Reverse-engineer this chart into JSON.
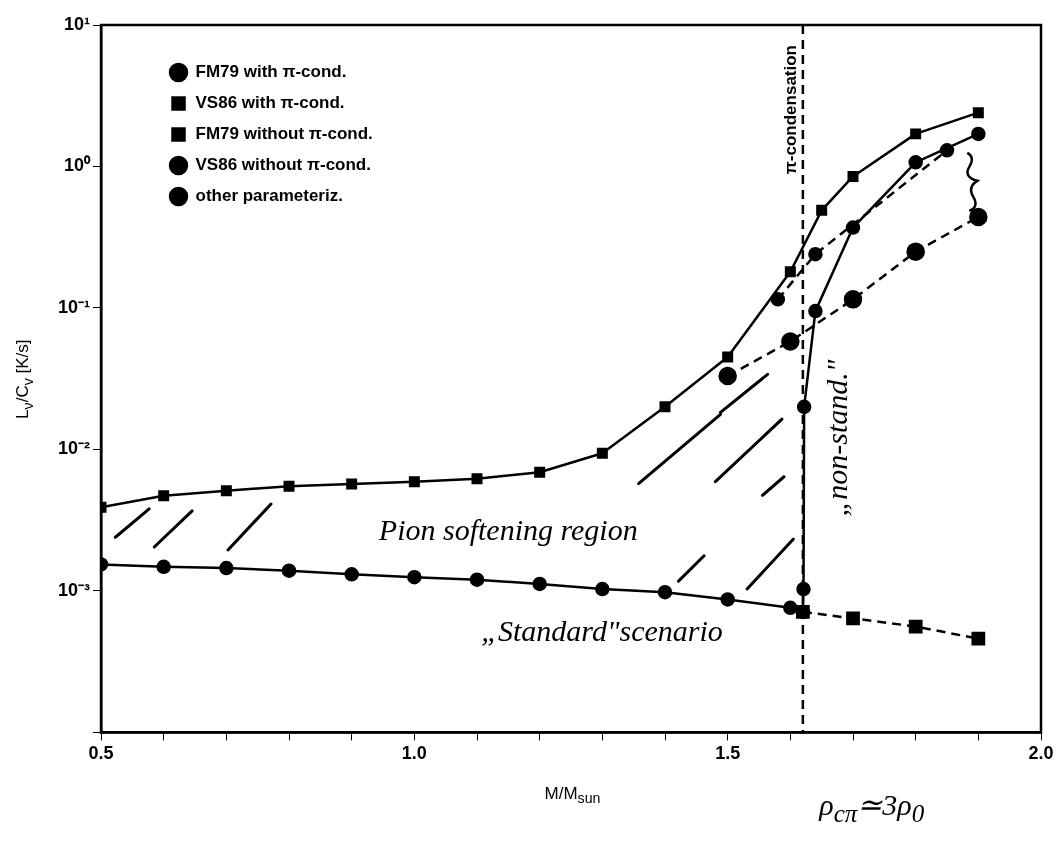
{
  "chart_data": {
    "type": "line",
    "xlabel": "M/M$_{sun}$",
    "ylabel": "L$_{ν}$/C$_{v}$ [K/s]",
    "log": "y",
    "grid": false,
    "legend": "top left",
    "xlim": [
      0.5,
      2.0
    ],
    "xticks": [
      {
        "value": 0.5,
        "label": "0.5"
      },
      {
        "value": 0.6,
        "label": null
      },
      {
        "value": 0.7,
        "label": null
      },
      {
        "value": 0.8,
        "label": null
      },
      {
        "value": 0.9,
        "label": null
      },
      {
        "value": 1.0,
        "label": "1.0"
      },
      {
        "value": 1.1,
        "label": null
      },
      {
        "value": 1.2,
        "label": null
      },
      {
        "value": 1.3,
        "label": null
      },
      {
        "value": 1.4,
        "label": null
      },
      {
        "value": 1.5,
        "label": "1.5"
      },
      {
        "value": 1.6,
        "label": null
      },
      {
        "value": 1.7,
        "label": null
      },
      {
        "value": 1.8,
        "label": null
      },
      {
        "value": 1.9,
        "label": null
      },
      {
        "value": 2.0,
        "label": "2.0"
      }
    ],
    "ylim": [
      0.0001,
      10
    ],
    "yticks": [
      {
        "value": 0.0001,
        "label": null
      },
      {
        "value": 0.001,
        "label": "10⁻³"
      },
      {
        "value": 0.01,
        "label": "10⁻²"
      },
      {
        "value": 0.1,
        "label": "10⁻¹"
      },
      {
        "value": 1,
        "label": "10⁰"
      },
      {
        "value": 10,
        "label": "10¹"
      }
    ],
    "series": [
      {
        "name": "FM79 with π-cond.",
        "color": "#000000",
        "marker": "circle",
        "line_style": "solid",
        "x": [
          0.5,
          0.6,
          0.7,
          0.8,
          0.9,
          1.0,
          1.1,
          1.2,
          1.3,
          1.4,
          1.5,
          1.6,
          1.62,
          1.621,
          1.622,
          1.64,
          1.7,
          1.8,
          1.9
        ],
        "values": [
          0.00154,
          0.00148,
          0.00145,
          0.00139,
          0.00131,
          0.00125,
          0.0012,
          0.00112,
          0.00103,
          0.00098,
          0.00087,
          0.00076,
          0.00071,
          0.00103,
          0.02,
          0.095,
          0.37,
          1.07,
          1.7
        ]
      },
      {
        "name": "VS86 with π-cond.",
        "color": "#000000",
        "marker": "square",
        "line_style": "solid",
        "x": [
          0.5,
          0.6,
          0.7,
          0.8,
          0.9,
          1.0,
          1.1,
          1.2,
          1.3,
          1.4,
          1.5,
          1.6,
          1.65,
          1.7,
          1.8,
          1.9
        ],
        "values": [
          0.0039,
          0.0047,
          0.0051,
          0.0055,
          0.0057,
          0.0059,
          0.0062,
          0.0069,
          0.0094,
          0.02,
          0.045,
          0.18,
          0.49,
          0.85,
          1.7,
          2.4
        ]
      },
      {
        "name": "FM79 without π-cond.",
        "color": "#000000",
        "marker": "square",
        "line_style": "dashed",
        "x": [
          1.62,
          1.7,
          1.8,
          1.9
        ],
        "values": [
          0.00071,
          0.00064,
          0.00056,
          0.00046
        ]
      },
      {
        "name": "VS86 without π-cond.",
        "color": "#000000",
        "marker": "circle",
        "line_style": "dashed",
        "x": [
          1.5,
          1.6,
          1.7,
          1.8,
          1.9
        ],
        "values": [
          0.033,
          0.058,
          0.115,
          0.25,
          0.44
        ]
      },
      {
        "name": "other parameteriz.",
        "color": "#000000",
        "marker": "circle",
        "line_style": "dashed",
        "x": [
          1.58,
          1.64,
          1.85
        ],
        "values": [
          0.115,
          0.24,
          1.3
        ]
      }
    ],
    "ref_lines": [
      {
        "axis": "x",
        "value": 1.62,
        "label": "π-condensation",
        "line_style": "dashed",
        "color": "#000000"
      }
    ],
    "annotations": [
      "Pion softening region",
      "„Standard\"scenario",
      "„non-stand.\"",
      "ρ$_{cπ}$≃3ρ$_{0}$"
    ]
  }
}
